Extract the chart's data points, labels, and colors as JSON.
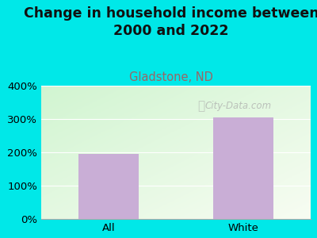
{
  "title": "Change in household income between\n2000 and 2022",
  "subtitle": "Gladstone, ND",
  "categories": [
    "All",
    "White"
  ],
  "values": [
    196,
    305
  ],
  "bar_color": "#c9aed6",
  "title_fontsize": 12.5,
  "subtitle_fontsize": 10.5,
  "subtitle_color": "#996666",
  "tick_label_fontsize": 9.5,
  "ylim": [
    0,
    400
  ],
  "yticks": [
    0,
    100,
    200,
    300,
    400
  ],
  "ytick_labels": [
    "0%",
    "100%",
    "200%",
    "300%",
    "400%"
  ],
  "background_outer": "#00e8e8",
  "watermark": "City-Data.com"
}
